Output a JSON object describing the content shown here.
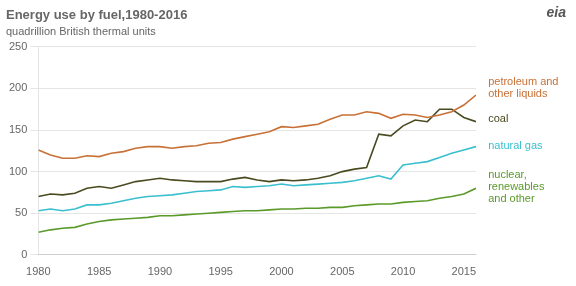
{
  "chart_data": {
    "type": "line",
    "title": "Energy use by fuel,1980-2016",
    "subtitle": "quadrillion British thermal units",
    "x": [
      1980,
      1981,
      1982,
      1983,
      1984,
      1985,
      1986,
      1987,
      1988,
      1989,
      1990,
      1991,
      1992,
      1993,
      1994,
      1995,
      1996,
      1997,
      1998,
      1999,
      2000,
      2001,
      2002,
      2003,
      2004,
      2005,
      2006,
      2007,
      2008,
      2009,
      2010,
      2011,
      2012,
      2013,
      2014,
      2015,
      2016
    ],
    "series": [
      {
        "name": "petroleum and\nother liquids",
        "color": "#c87137",
        "values": [
          126,
          120,
          116,
          116,
          119,
          118,
          122,
          124,
          128,
          130,
          130,
          128,
          130,
          131,
          134,
          135,
          139,
          142,
          145,
          148,
          154,
          153,
          155,
          157,
          163,
          168,
          168,
          172,
          170,
          164,
          169,
          168,
          165,
          168,
          172,
          180,
          192
        ]
      },
      {
        "name": "coal",
        "color": "#4a4a20",
        "values": [
          70,
          73,
          72,
          74,
          80,
          82,
          80,
          84,
          88,
          90,
          92,
          90,
          89,
          88,
          88,
          88,
          91,
          93,
          90,
          88,
          90,
          89,
          90,
          92,
          95,
          100,
          103,
          105,
          145,
          143,
          155,
          162,
          160,
          175,
          175,
          165,
          160
        ]
      },
      {
        "name": "natural gas",
        "color": "#3abfcf",
        "values": [
          53,
          55,
          53,
          55,
          60,
          60,
          62,
          65,
          68,
          70,
          71,
          72,
          74,
          76,
          77,
          78,
          82,
          81,
          82,
          83,
          85,
          83,
          84,
          85,
          86,
          87,
          89,
          92,
          95,
          91,
          108,
          110,
          112,
          117,
          122,
          126,
          130
        ]
      },
      {
        "name": "nuclear,\nrenewables\nand other",
        "color": "#5a9a2a",
        "values": [
          27,
          30,
          32,
          33,
          37,
          40,
          42,
          43,
          44,
          45,
          47,
          47,
          48,
          49,
          50,
          51,
          52,
          53,
          53,
          54,
          55,
          55,
          56,
          56,
          57,
          57,
          59,
          60,
          61,
          61,
          63,
          64,
          65,
          68,
          70,
          73,
          80
        ]
      }
    ],
    "xlim": [
      1980,
      2016
    ],
    "xticks": [
      1980,
      1985,
      1990,
      1995,
      2000,
      2005,
      2010,
      2015
    ],
    "ylim": [
      0,
      250
    ],
    "yticks": [
      0,
      50,
      100,
      150,
      200,
      250
    ],
    "grid": true,
    "annotations": [
      {
        "x": 2017.0,
        "y": 200,
        "text": "petroleum and\nother liquids"
      },
      {
        "x": 2017.0,
        "y": 163,
        "text": "coal"
      },
      {
        "x": 2017.0,
        "y": 131,
        "text": "natural gas"
      },
      {
        "x": 2017.0,
        "y": 82,
        "text": "nuclear,\nrenewables\nand other"
      },
      {
        "text": "eia"
      }
    ]
  }
}
